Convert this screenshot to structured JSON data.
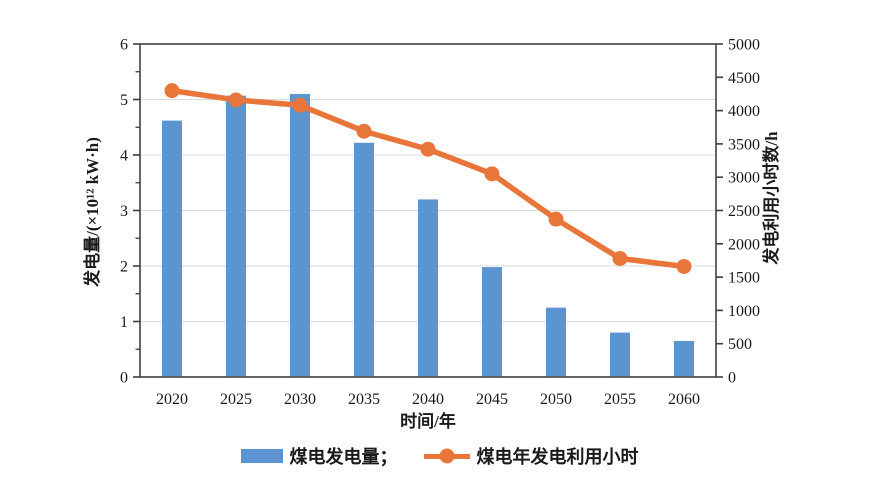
{
  "chart_data": {
    "type": "bar",
    "subtype": "bar-line-combo",
    "categories": [
      "2020",
      "2025",
      "2030",
      "2035",
      "2040",
      "2045",
      "2050",
      "2055",
      "2060"
    ],
    "series": [
      {
        "name": "煤电发电量",
        "type": "bar",
        "axis": "left",
        "color": "#5B94CE",
        "values": [
          4.62,
          5.07,
          5.1,
          4.22,
          3.2,
          1.98,
          1.25,
          0.8,
          0.65
        ]
      },
      {
        "name": "煤电年发电利用小时",
        "type": "line",
        "axis": "right",
        "color": "#E8763B",
        "values": [
          4300,
          4160,
          4080,
          3690,
          3420,
          3050,
          2370,
          1780,
          1660
        ]
      }
    ],
    "xlabel": "时间/年",
    "ylabel_left": "发电量/(×10¹² kW·h)",
    "ylabel_right": "发电利用小时数/h",
    "ylim_left": [
      0,
      6
    ],
    "yticks_left": [
      0,
      1,
      2,
      3,
      4,
      5,
      6
    ],
    "yminor_step_left": 0.5,
    "ylim_right": [
      0,
      5000
    ],
    "yticks_right": [
      0,
      500,
      1000,
      1500,
      2000,
      2500,
      3000,
      3500,
      4000,
      4500,
      5000
    ],
    "grid": true,
    "gridline_color": "#DBDBDB",
    "axis_color": "#3d3d3d",
    "text_color": "#1a1a1a",
    "legend_position": "bottom",
    "legend": [
      {
        "label": "煤电发电量；",
        "swatch": "bar-swatch",
        "color": "#5B94CE"
      },
      {
        "label": "煤电年发电利用小时",
        "swatch": "line-marker-swatch",
        "color": "#E8763B"
      }
    ]
  }
}
